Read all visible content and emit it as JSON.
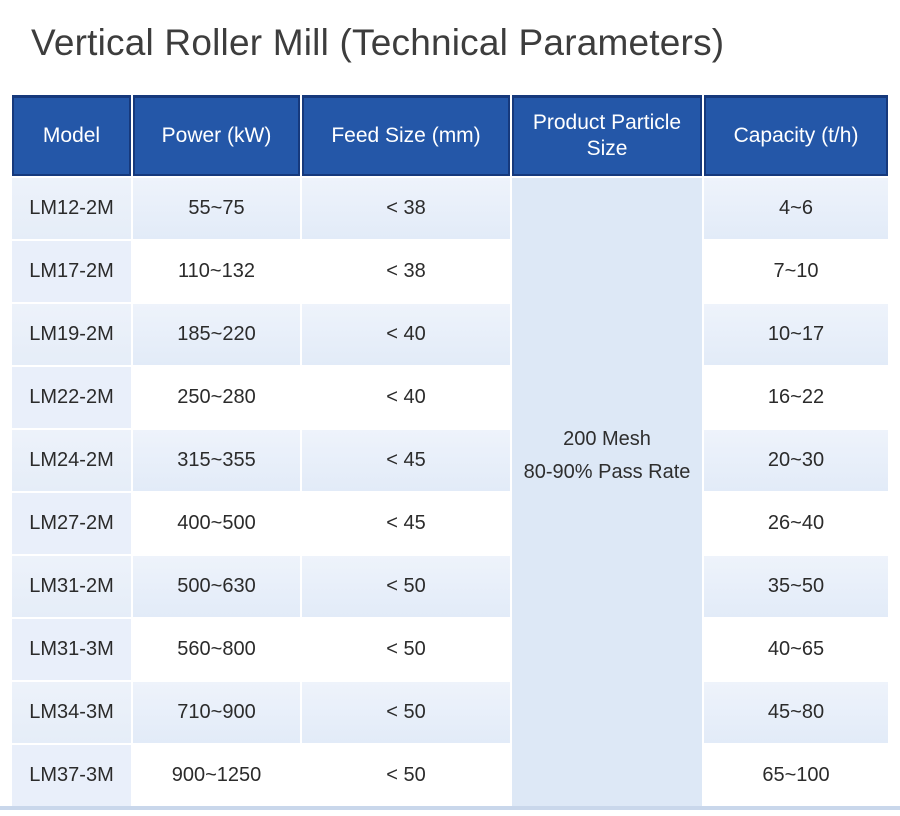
{
  "page_title": "Vertical Roller Mill (Technical Parameters)",
  "colors": {
    "header_bg": "#2457a8",
    "header_border": "#16397c",
    "row_tint": "#e6eef9",
    "merged_bg": "#dde8f6",
    "bottom_rule": "#c9d7eb",
    "title_text": "#3d3d3d"
  },
  "chart_data": {
    "type": "table",
    "title": "Vertical Roller Mill (Technical Parameters)",
    "columns": [
      "Model",
      "Power (kW)",
      "Feed Size (mm)",
      "Product Particle Size",
      "Capacity (t/h)"
    ],
    "column_keys": [
      "model",
      "power",
      "feed",
      "particle",
      "capacity"
    ],
    "merged_column": {
      "column": "Product Particle Size",
      "lines": [
        "200 Mesh",
        "80-90% Pass Rate"
      ]
    },
    "rows": [
      {
        "model": "LM12-2M",
        "power": "55~75",
        "feed_size": "< 38",
        "capacity": "4~6"
      },
      {
        "model": "LM17-2M",
        "power": "110~132",
        "feed_size": "< 38",
        "capacity": "7~10"
      },
      {
        "model": "LM19-2M",
        "power": "185~220",
        "feed_size": "< 40",
        "capacity": "10~17"
      },
      {
        "model": "LM22-2M",
        "power": "250~280",
        "feed_size": "< 40",
        "capacity": "16~22"
      },
      {
        "model": "LM24-2M",
        "power": "315~355",
        "feed_size": "< 45",
        "capacity": "20~30"
      },
      {
        "model": "LM27-2M",
        "power": "400~500",
        "feed_size": "< 45",
        "capacity": "26~40"
      },
      {
        "model": "LM31-2M",
        "power": "500~630",
        "feed_size": "< 50",
        "capacity": "35~50"
      },
      {
        "model": "LM31-3M",
        "power": "560~800",
        "feed_size": "< 50",
        "capacity": "40~65"
      },
      {
        "model": "LM34-3M",
        "power": "710~900",
        "feed_size": "< 50",
        "capacity": "45~80"
      },
      {
        "model": "LM37-3M",
        "power": "900~1250",
        "feed_size": "< 50",
        "capacity": "65~100"
      }
    ]
  }
}
